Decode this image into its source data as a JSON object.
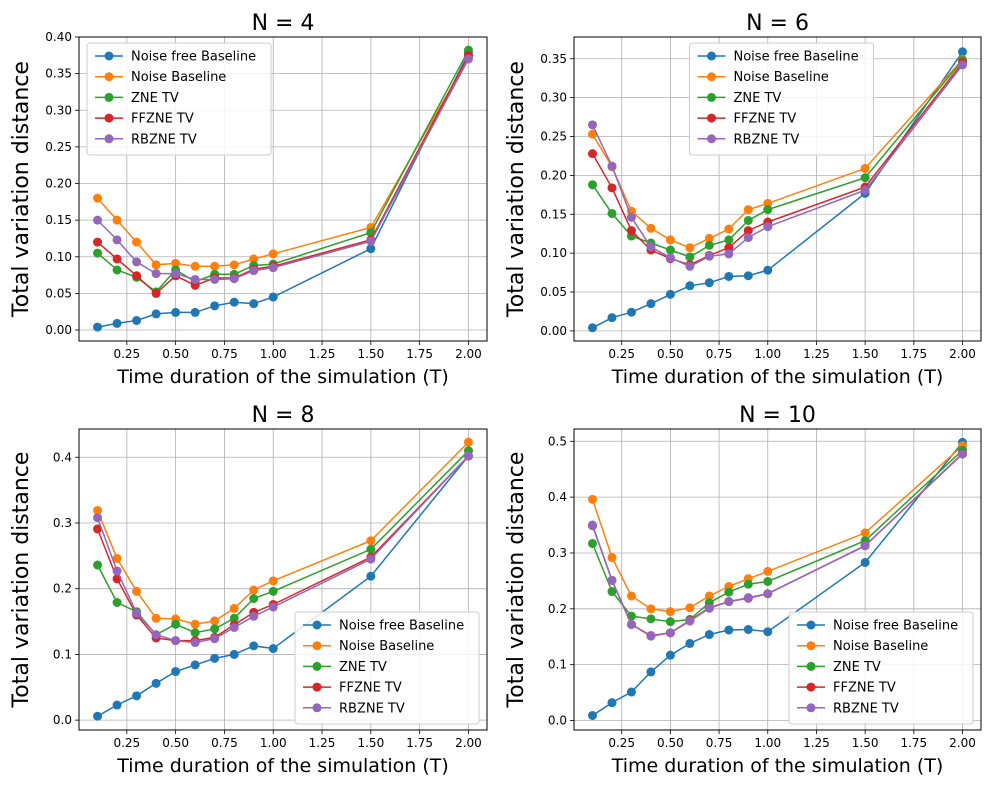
{
  "figure": {
    "colors": {
      "noise_free": "#1f77b4",
      "noise": "#ff7f0e",
      "zne": "#2ca02c",
      "ffzne": "#d62728",
      "rbzne": "#9467bd",
      "grid": "#b0b0b0",
      "axis": "#000000"
    }
  },
  "chart_data": [
    {
      "type": "line",
      "title": "N = 4",
      "xlabel": "Time duration of the simulation (T)",
      "ylabel": "Total variation distance",
      "xlim": [
        0.005,
        2.095
      ],
      "ylim": [
        -0.015,
        0.4
      ],
      "xticks": [
        "0.25",
        "0.50",
        "0.75",
        "1.00",
        "1.25",
        "1.50",
        "1.75",
        "2.00"
      ],
      "yticks": [
        "0.00",
        "0.05",
        "0.10",
        "0.15",
        "0.20",
        "0.25",
        "0.30",
        "0.35",
        "0.40"
      ],
      "grid": true,
      "legend_position": "upper-left",
      "x": [
        0.1,
        0.2,
        0.3,
        0.4,
        0.5,
        0.6,
        0.7,
        0.8,
        0.9,
        1.0,
        1.5,
        2.0
      ],
      "series": [
        {
          "name": "Noise free Baseline",
          "color_key": "noise_free",
          "values": [
            0.004,
            0.009,
            0.013,
            0.022,
            0.024,
            0.024,
            0.033,
            0.038,
            0.036,
            0.045,
            0.111,
            0.378
          ]
        },
        {
          "name": "Noise Baseline",
          "color_key": "noise",
          "values": [
            0.18,
            0.15,
            0.12,
            0.089,
            0.091,
            0.087,
            0.087,
            0.089,
            0.097,
            0.104,
            0.14,
            0.372
          ]
        },
        {
          "name": "ZNE TV",
          "color_key": "zne",
          "values": [
            0.105,
            0.082,
            0.072,
            0.052,
            0.082,
            0.066,
            0.076,
            0.076,
            0.088,
            0.09,
            0.133,
            0.382
          ]
        },
        {
          "name": "FFZNE TV",
          "color_key": "ffzne",
          "values": [
            0.12,
            0.097,
            0.074,
            0.05,
            0.074,
            0.061,
            0.071,
            0.071,
            0.083,
            0.087,
            0.123,
            0.375
          ]
        },
        {
          "name": "RBZNE TV",
          "color_key": "rbzne",
          "values": [
            0.15,
            0.123,
            0.093,
            0.077,
            0.077,
            0.069,
            0.069,
            0.07,
            0.081,
            0.085,
            0.121,
            0.37
          ]
        }
      ]
    },
    {
      "type": "line",
      "title": "N = 6",
      "xlabel": "Time duration of the simulation (T)",
      "ylabel": "Total variation distance",
      "xlim": [
        0.005,
        2.095
      ],
      "ylim": [
        -0.013,
        0.378
      ],
      "xticks": [
        "0.25",
        "0.50",
        "0.75",
        "1.00",
        "1.25",
        "1.50",
        "1.75",
        "2.00"
      ],
      "yticks": [
        "0.00",
        "0.05",
        "0.10",
        "0.15",
        "0.20",
        "0.25",
        "0.30",
        "0.35"
      ],
      "grid": true,
      "legend_position": "upper-center",
      "x": [
        0.1,
        0.2,
        0.3,
        0.4,
        0.5,
        0.6,
        0.7,
        0.8,
        0.9,
        1.0,
        1.5,
        2.0
      ],
      "series": [
        {
          "name": "Noise free Baseline",
          "color_key": "noise_free",
          "values": [
            0.004,
            0.017,
            0.024,
            0.035,
            0.047,
            0.058,
            0.062,
            0.07,
            0.071,
            0.078,
            0.177,
            0.359
          ]
        },
        {
          "name": "Noise Baseline",
          "color_key": "noise",
          "values": [
            0.253,
            0.211,
            0.154,
            0.132,
            0.117,
            0.107,
            0.119,
            0.131,
            0.156,
            0.164,
            0.209,
            0.349
          ]
        },
        {
          "name": "ZNE TV",
          "color_key": "zne",
          "values": [
            0.188,
            0.151,
            0.122,
            0.113,
            0.104,
            0.095,
            0.11,
            0.117,
            0.142,
            0.156,
            0.197,
            0.348
          ]
        },
        {
          "name": "FFZNE TV",
          "color_key": "ffzne",
          "values": [
            0.228,
            0.184,
            0.129,
            0.104,
            0.093,
            0.085,
            0.097,
            0.107,
            0.129,
            0.14,
            0.185,
            0.345
          ]
        },
        {
          "name": "RBZNE TV",
          "color_key": "rbzne",
          "values": [
            0.265,
            0.212,
            0.146,
            0.108,
            0.094,
            0.083,
            0.096,
            0.099,
            0.12,
            0.134,
            0.181,
            0.342
          ]
        }
      ]
    },
    {
      "type": "line",
      "title": "N = 8",
      "xlabel": "Time duration of the simulation (T)",
      "ylabel": "Total variation distance",
      "xlim": [
        0.005,
        2.095
      ],
      "ylim": [
        -0.015,
        0.443
      ],
      "xticks": [
        "0.25",
        "0.50",
        "0.75",
        "1.00",
        "1.25",
        "1.50",
        "1.75",
        "2.00"
      ],
      "yticks": [
        "0.0",
        "0.1",
        "0.2",
        "0.3",
        "0.4"
      ],
      "grid": true,
      "legend_position": "lower-right",
      "x": [
        0.1,
        0.2,
        0.3,
        0.4,
        0.5,
        0.6,
        0.7,
        0.8,
        0.9,
        1.0,
        1.5,
        2.0
      ],
      "series": [
        {
          "name": "Noise free Baseline",
          "color_key": "noise_free",
          "values": [
            0.006,
            0.023,
            0.037,
            0.056,
            0.074,
            0.084,
            0.094,
            0.1,
            0.113,
            0.109,
            0.219,
            0.402
          ]
        },
        {
          "name": "Noise Baseline",
          "color_key": "noise",
          "values": [
            0.319,
            0.246,
            0.196,
            0.155,
            0.154,
            0.146,
            0.151,
            0.17,
            0.198,
            0.212,
            0.273,
            0.423
          ]
        },
        {
          "name": "ZNE TV",
          "color_key": "zne",
          "values": [
            0.236,
            0.179,
            0.165,
            0.13,
            0.146,
            0.133,
            0.139,
            0.155,
            0.185,
            0.196,
            0.26,
            0.41
          ]
        },
        {
          "name": "FFZNE TV",
          "color_key": "ffzne",
          "values": [
            0.291,
            0.215,
            0.16,
            0.125,
            0.121,
            0.121,
            0.126,
            0.145,
            0.164,
            0.176,
            0.248,
            0.402
          ]
        },
        {
          "name": "RBZNE TV",
          "color_key": "rbzne",
          "values": [
            0.308,
            0.227,
            0.163,
            0.13,
            0.121,
            0.118,
            0.124,
            0.141,
            0.158,
            0.172,
            0.245,
            0.402
          ]
        }
      ]
    },
    {
      "type": "line",
      "title": "N = 10",
      "xlabel": "Time duration of the simulation (T)",
      "ylabel": "Total variation distance",
      "xlim": [
        0.005,
        2.095
      ],
      "ylim": [
        -0.017,
        0.522
      ],
      "xticks": [
        "0.25",
        "0.50",
        "0.75",
        "1.00",
        "1.25",
        "1.50",
        "1.75",
        "2.00"
      ],
      "yticks": [
        "0.0",
        "0.1",
        "0.2",
        "0.3",
        "0.4",
        "0.5"
      ],
      "grid": true,
      "legend_position": "lower-right",
      "x": [
        0.1,
        0.2,
        0.3,
        0.4,
        0.5,
        0.6,
        0.7,
        0.8,
        0.9,
        1.0,
        1.5,
        2.0
      ],
      "series": [
        {
          "name": "Noise free Baseline",
          "color_key": "noise_free",
          "values": [
            0.009,
            0.032,
            0.051,
            0.087,
            0.117,
            0.138,
            0.154,
            0.162,
            0.163,
            0.159,
            0.283,
            0.498
          ]
        },
        {
          "name": "Noise Baseline",
          "color_key": "noise",
          "values": [
            0.396,
            0.292,
            0.223,
            0.2,
            0.195,
            0.202,
            0.223,
            0.24,
            0.254,
            0.267,
            0.336,
            0.492
          ]
        },
        {
          "name": "ZNE TV",
          "color_key": "zne",
          "values": [
            0.317,
            0.231,
            0.187,
            0.182,
            0.177,
            0.181,
            0.211,
            0.23,
            0.244,
            0.249,
            0.322,
            0.484
          ]
        },
        {
          "name": "FFZNE TV",
          "color_key": "ffzne",
          "values": [
            0.349,
            0.251,
            0.172,
            0.152,
            0.157,
            0.179,
            0.202,
            0.213,
            0.219,
            0.227,
            0.313,
            0.478
          ]
        },
        {
          "name": "RBZNE TV",
          "color_key": "rbzne",
          "values": [
            0.35,
            0.251,
            0.172,
            0.151,
            0.157,
            0.178,
            0.201,
            0.213,
            0.22,
            0.227,
            0.313,
            0.477
          ]
        }
      ]
    }
  ]
}
